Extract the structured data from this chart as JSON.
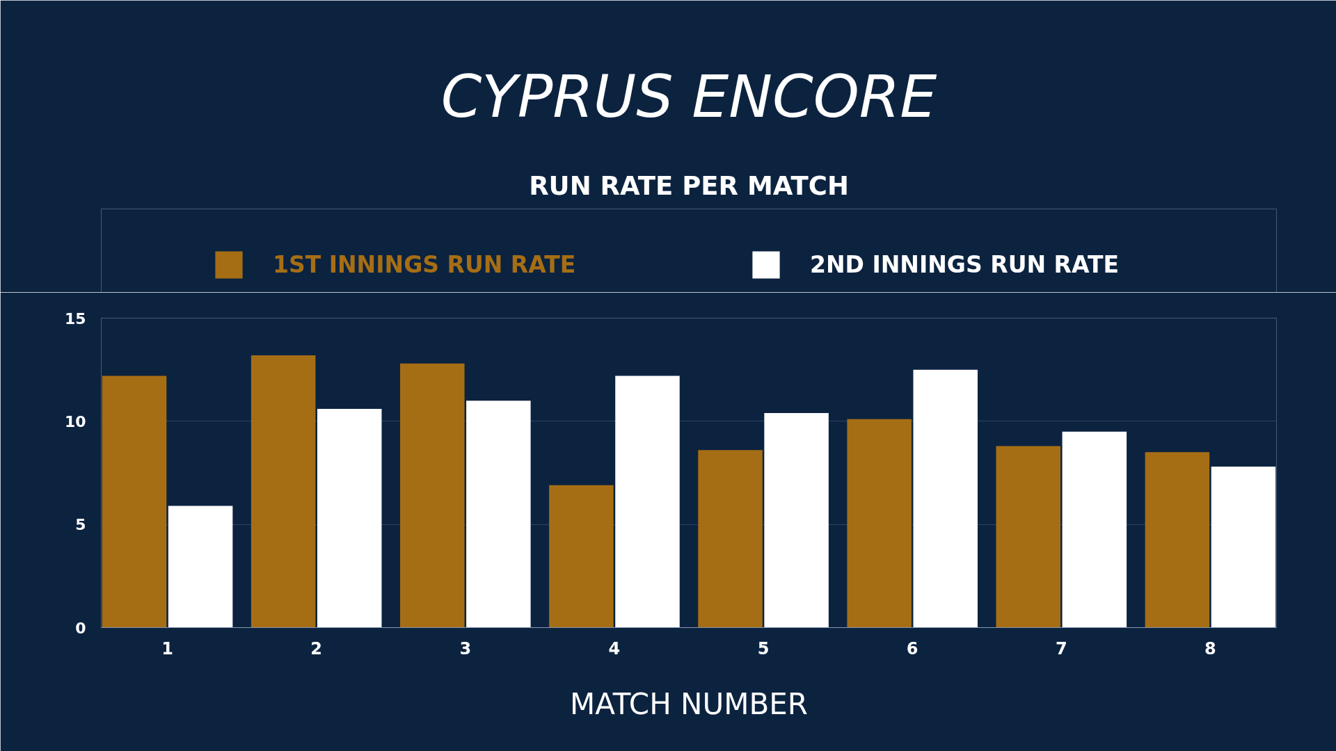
{
  "chart_data": {
    "type": "bar",
    "title": "CYPRUS ENCORE",
    "subtitle": "RUN RATE PER MATCH",
    "xlabel": "MATCH NUMBER",
    "categories": [
      "1",
      "2",
      "3",
      "4",
      "5",
      "6",
      "7",
      "8"
    ],
    "series": [
      {
        "name": "1ST INNINGS RUN RATE",
        "color": "#a66e14",
        "values": [
          12.2,
          13.2,
          12.8,
          6.9,
          8.6,
          10.1,
          8.8,
          8.5
        ]
      },
      {
        "name": "2ND INNINGS RUN RATE",
        "color": "#ffffff",
        "values": [
          5.9,
          10.6,
          11.0,
          12.2,
          10.4,
          12.5,
          9.5,
          7.8
        ]
      }
    ],
    "ylim": [
      0,
      15
    ],
    "yticks": [
      0,
      5,
      10,
      15
    ],
    "grid": "y",
    "legend": "top"
  }
}
